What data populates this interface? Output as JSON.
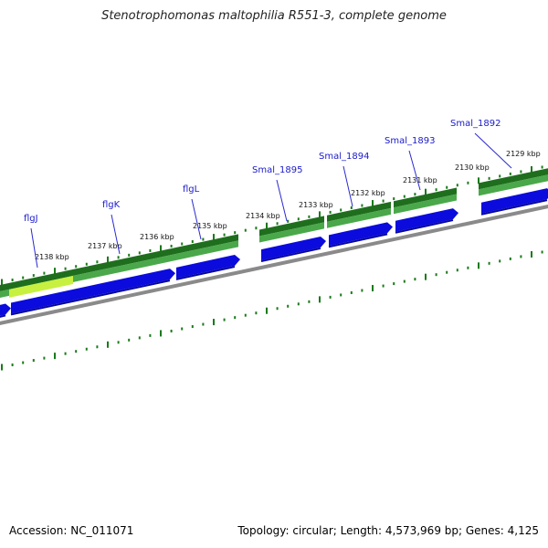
{
  "title": "Stenotrophomonas maltophilia R551-3, complete genome",
  "footer": {
    "accession": "Accession: NC_011071",
    "summary": "Topology: circular; Length: 4,573,969 bp; Genes: 4,125"
  },
  "colors": {
    "cds_strand": "#2a8a2a",
    "cds_strand_dark": "#1e6e1e",
    "gene_highlight": "#c8f040",
    "gene_arrow": "#0b0bdd",
    "backbone": "#888888",
    "tick": "#1a7a1a",
    "gene_label": "#1a1acc"
  },
  "kbp_labels": [
    "2138 kbp",
    "2137 kbp",
    "2136 kbp",
    "2135 kbp",
    "2134 kbp",
    "2133 kbp",
    "2132 kbp",
    "2131 kbp",
    "2130 kbp",
    "2129 kbp"
  ],
  "gene_labels": [
    "flgJ",
    "flgK",
    "flgL",
    "Smal_1895",
    "Smal_1894",
    "Smal_1893",
    "Smal_1892"
  ]
}
